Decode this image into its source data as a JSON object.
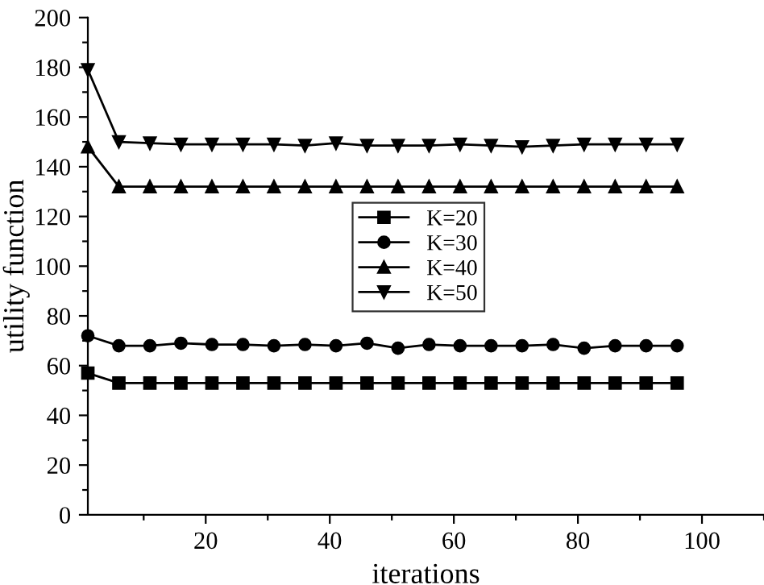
{
  "chart_data": {
    "type": "line",
    "xlabel": "iterations",
    "ylabel": "utility function",
    "x": [
      1,
      6,
      11,
      16,
      21,
      26,
      31,
      36,
      41,
      46,
      51,
      56,
      61,
      66,
      71,
      76,
      81,
      86,
      91,
      96
    ],
    "series": [
      {
        "name": "K=20",
        "color": "#000000",
        "marker": "square",
        "values": [
          57,
          53,
          53,
          53,
          53,
          53,
          53,
          53,
          53,
          53,
          53,
          53,
          53,
          53,
          53,
          53,
          53,
          53,
          53,
          53
        ]
      },
      {
        "name": "K=30",
        "color": "#000000",
        "marker": "circle",
        "values": [
          72,
          68,
          68,
          69,
          68.5,
          68.5,
          68,
          68.5,
          68,
          69,
          67,
          68.5,
          68,
          68,
          68,
          68.5,
          67,
          68,
          68,
          68
        ]
      },
      {
        "name": "K=40",
        "color": "#000000",
        "marker": "triangle",
        "values": [
          148,
          132,
          132,
          132,
          132,
          132,
          132,
          132,
          132,
          132,
          132,
          132,
          132,
          132,
          132,
          132,
          132,
          132,
          132,
          132
        ]
      },
      {
        "name": "K=50",
        "color": "#000000",
        "marker": "triangle_down",
        "values": [
          179,
          150,
          149.5,
          149,
          149,
          149,
          149,
          148.5,
          149.5,
          148.5,
          148.5,
          148.5,
          149,
          148.5,
          148,
          148.5,
          149,
          149,
          149,
          149
        ]
      }
    ],
    "xlim": [
      1,
      110
    ],
    "xticks": [
      {
        "value": 10,
        "label": null
      },
      20,
      {
        "value": 30,
        "label": null
      },
      40,
      {
        "value": 50,
        "label": null
      },
      60,
      {
        "value": 70,
        "label": null
      },
      80,
      {
        "value": 90,
        "label": null
      },
      100,
      {
        "value": 110,
        "label": null
      }
    ],
    "ylim": [
      0,
      200
    ],
    "yticks": [
      0,
      {
        "value": 10,
        "label": null
      },
      20,
      {
        "value": 30,
        "label": null
      },
      40,
      {
        "value": 50,
        "label": null
      },
      60,
      {
        "value": 70,
        "label": null
      },
      80,
      {
        "value": 90,
        "label": null
      },
      100,
      {
        "value": 110,
        "label": null
      },
      120,
      {
        "value": 130,
        "label": null
      },
      140,
      {
        "value": 150,
        "label": null
      },
      160,
      {
        "value": 170,
        "label": null
      },
      180,
      {
        "value": 190,
        "label": null
      },
      200
    ],
    "grid": false,
    "legend": "center",
    "line_style": "solid"
  }
}
